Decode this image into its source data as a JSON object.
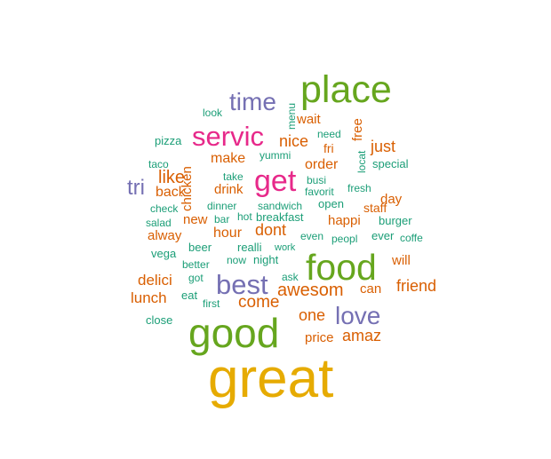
{
  "palette": {
    "teal": "#1b9e77",
    "orange": "#d95f02",
    "purple": "#7570b3",
    "magenta": "#e7298a",
    "green": "#66a61e",
    "gold": "#e6ab02"
  },
  "words": [
    {
      "text": "great",
      "color": "gold"
    },
    {
      "text": "good",
      "color": "green"
    },
    {
      "text": "place",
      "color": "green"
    },
    {
      "text": "food",
      "color": "green"
    },
    {
      "text": "servic",
      "color": "magenta"
    },
    {
      "text": "get",
      "color": "magenta"
    },
    {
      "text": "best",
      "color": "purple"
    },
    {
      "text": "love",
      "color": "purple"
    },
    {
      "text": "time",
      "color": "purple"
    },
    {
      "text": "tri",
      "color": "purple"
    },
    {
      "text": "awesom",
      "color": "orange"
    },
    {
      "text": "like",
      "color": "orange"
    },
    {
      "text": "come",
      "color": "orange"
    },
    {
      "text": "friend",
      "color": "orange"
    },
    {
      "text": "amaz",
      "color": "orange"
    },
    {
      "text": "one",
      "color": "orange"
    },
    {
      "text": "nice",
      "color": "orange"
    },
    {
      "text": "just",
      "color": "orange"
    },
    {
      "text": "dont",
      "color": "orange"
    },
    {
      "text": "order",
      "color": "orange"
    },
    {
      "text": "lunch",
      "color": "orange"
    },
    {
      "text": "delici",
      "color": "orange"
    },
    {
      "text": "make",
      "color": "orange"
    },
    {
      "text": "hour",
      "color": "orange"
    },
    {
      "text": "back",
      "color": "orange"
    },
    {
      "text": "price",
      "color": "orange"
    },
    {
      "text": "can",
      "color": "orange"
    },
    {
      "text": "happi",
      "color": "orange"
    },
    {
      "text": "wait",
      "color": "orange"
    },
    {
      "text": "day",
      "color": "orange"
    },
    {
      "text": "drink",
      "color": "orange"
    },
    {
      "text": "new",
      "color": "orange"
    },
    {
      "text": "alway",
      "color": "orange"
    },
    {
      "text": "will",
      "color": "orange"
    },
    {
      "text": "chicken",
      "color": "orange"
    },
    {
      "text": "free",
      "color": "orange"
    },
    {
      "text": "fri",
      "color": "orange"
    },
    {
      "text": "staff",
      "color": "orange"
    },
    {
      "text": "pizza",
      "color": "teal"
    },
    {
      "text": "look",
      "color": "teal"
    },
    {
      "text": "menu",
      "color": "teal"
    },
    {
      "text": "need",
      "color": "teal"
    },
    {
      "text": "yummi",
      "color": "teal"
    },
    {
      "text": "taco",
      "color": "teal"
    },
    {
      "text": "take",
      "color": "teal"
    },
    {
      "text": "busi",
      "color": "teal"
    },
    {
      "text": "locat",
      "color": "teal"
    },
    {
      "text": "special",
      "color": "teal"
    },
    {
      "text": "favorit",
      "color": "teal"
    },
    {
      "text": "fresh",
      "color": "teal"
    },
    {
      "text": "check",
      "color": "teal"
    },
    {
      "text": "dinner",
      "color": "teal"
    },
    {
      "text": "sandwich",
      "color": "teal"
    },
    {
      "text": "open",
      "color": "teal"
    },
    {
      "text": "salad",
      "color": "teal"
    },
    {
      "text": "bar",
      "color": "teal"
    },
    {
      "text": "hot",
      "color": "teal"
    },
    {
      "text": "breakfast",
      "color": "teal"
    },
    {
      "text": "burger",
      "color": "teal"
    },
    {
      "text": "beer",
      "color": "teal"
    },
    {
      "text": "realli",
      "color": "teal"
    },
    {
      "text": "work",
      "color": "teal"
    },
    {
      "text": "even",
      "color": "teal"
    },
    {
      "text": "peopl",
      "color": "teal"
    },
    {
      "text": "ever",
      "color": "teal"
    },
    {
      "text": "coffe",
      "color": "teal"
    },
    {
      "text": "vega",
      "color": "teal"
    },
    {
      "text": "better",
      "color": "teal"
    },
    {
      "text": "now",
      "color": "teal"
    },
    {
      "text": "night",
      "color": "teal"
    },
    {
      "text": "got",
      "color": "teal"
    },
    {
      "text": "ask",
      "color": "teal"
    },
    {
      "text": "eat",
      "color": "teal"
    },
    {
      "text": "first",
      "color": "teal"
    },
    {
      "text": "close",
      "color": "teal"
    }
  ]
}
